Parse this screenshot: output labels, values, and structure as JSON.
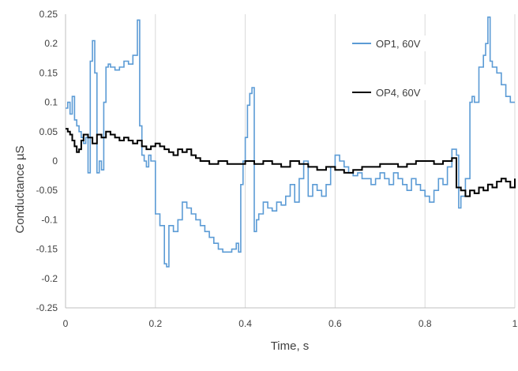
{
  "chart_data": {
    "type": "line",
    "title": "",
    "xlabel": "Time, s",
    "ylabel": "Conductance µS",
    "xlim": [
      0,
      1
    ],
    "ylim": [
      -0.25,
      0.25
    ],
    "x_ticks": [
      "0",
      "0.2",
      "0.4",
      "0.6",
      "0.8",
      "1"
    ],
    "y_ticks": [
      "0.25",
      "0.2",
      "0.15",
      "0.1",
      "0.05",
      "0",
      "-0.05",
      "-0.1",
      "-0.15",
      "-0.2",
      "-0.25"
    ],
    "grid": "vertical",
    "legend_position": "top-right",
    "colors": {
      "op1": "#5b9bd5",
      "op4": "#000000",
      "grid": "#d9d9d9"
    },
    "series": [
      {
        "name": "OP1, 60V",
        "color": "#5b9bd5",
        "step": true,
        "x": [
          0,
          0.005,
          0.01,
          0.015,
          0.02,
          0.025,
          0.03,
          0.035,
          0.04,
          0.045,
          0.05,
          0.055,
          0.06,
          0.065,
          0.07,
          0.075,
          0.08,
          0.085,
          0.09,
          0.095,
          0.1,
          0.11,
          0.12,
          0.13,
          0.14,
          0.15,
          0.16,
          0.165,
          0.17,
          0.175,
          0.18,
          0.185,
          0.19,
          0.2,
          0.21,
          0.22,
          0.225,
          0.23,
          0.24,
          0.25,
          0.26,
          0.27,
          0.28,
          0.29,
          0.3,
          0.31,
          0.32,
          0.33,
          0.34,
          0.35,
          0.36,
          0.37,
          0.38,
          0.385,
          0.39,
          0.395,
          0.4,
          0.405,
          0.41,
          0.415,
          0.42,
          0.425,
          0.43,
          0.44,
          0.45,
          0.46,
          0.47,
          0.48,
          0.49,
          0.5,
          0.51,
          0.52,
          0.53,
          0.54,
          0.55,
          0.56,
          0.57,
          0.58,
          0.59,
          0.6,
          0.61,
          0.62,
          0.63,
          0.64,
          0.65,
          0.66,
          0.67,
          0.68,
          0.69,
          0.7,
          0.71,
          0.72,
          0.73,
          0.74,
          0.75,
          0.76,
          0.77,
          0.78,
          0.79,
          0.8,
          0.81,
          0.82,
          0.83,
          0.84,
          0.85,
          0.86,
          0.87,
          0.875,
          0.88,
          0.89,
          0.9,
          0.905,
          0.91,
          0.92,
          0.93,
          0.935,
          0.94,
          0.945,
          0.95,
          0.96,
          0.97,
          0.98,
          0.99,
          1.0
        ],
        "y": [
          0.09,
          0.1,
          0.08,
          0.11,
          0.07,
          0.06,
          0.05,
          0.04,
          0.03,
          0.04,
          -0.02,
          0.17,
          0.205,
          0.15,
          -0.02,
          0.0,
          -0.015,
          0.1,
          0.16,
          0.165,
          0.16,
          0.155,
          0.16,
          0.17,
          0.165,
          0.18,
          0.24,
          0.06,
          0.01,
          0.0,
          -0.01,
          0.01,
          0.0,
          -0.09,
          -0.11,
          -0.175,
          -0.18,
          -0.11,
          -0.12,
          -0.1,
          -0.07,
          -0.08,
          -0.09,
          -0.1,
          -0.11,
          -0.12,
          -0.13,
          -0.14,
          -0.15,
          -0.155,
          -0.155,
          -0.15,
          -0.14,
          -0.155,
          -0.04,
          0.0,
          0.04,
          0.095,
          0.115,
          0.125,
          -0.12,
          -0.1,
          -0.09,
          -0.07,
          -0.08,
          -0.085,
          -0.07,
          -0.075,
          -0.06,
          -0.04,
          -0.07,
          -0.03,
          0.0,
          -0.06,
          -0.04,
          -0.05,
          -0.06,
          -0.04,
          -0.01,
          0.01,
          0.0,
          -0.01,
          -0.02,
          -0.025,
          -0.02,
          -0.03,
          -0.03,
          -0.04,
          -0.03,
          -0.02,
          -0.03,
          -0.04,
          -0.02,
          -0.03,
          -0.04,
          -0.05,
          -0.03,
          -0.04,
          -0.05,
          -0.06,
          -0.07,
          -0.05,
          -0.03,
          -0.04,
          -0.01,
          0.02,
          0.01,
          -0.08,
          -0.06,
          -0.03,
          0.1,
          0.11,
          0.1,
          0.16,
          0.18,
          0.2,
          0.245,
          0.17,
          0.16,
          0.15,
          0.13,
          0.11,
          0.1,
          0.1
        ]
      },
      {
        "name": "OP4, 60V",
        "color": "#000000",
        "step": true,
        "x": [
          0,
          0.005,
          0.01,
          0.015,
          0.02,
          0.025,
          0.03,
          0.035,
          0.04,
          0.05,
          0.06,
          0.07,
          0.08,
          0.09,
          0.1,
          0.11,
          0.12,
          0.13,
          0.14,
          0.15,
          0.16,
          0.17,
          0.18,
          0.19,
          0.2,
          0.21,
          0.22,
          0.23,
          0.24,
          0.25,
          0.26,
          0.27,
          0.28,
          0.29,
          0.3,
          0.32,
          0.34,
          0.36,
          0.38,
          0.4,
          0.42,
          0.44,
          0.46,
          0.48,
          0.5,
          0.52,
          0.54,
          0.56,
          0.58,
          0.6,
          0.62,
          0.64,
          0.66,
          0.68,
          0.7,
          0.72,
          0.74,
          0.76,
          0.78,
          0.8,
          0.82,
          0.84,
          0.86,
          0.87,
          0.88,
          0.89,
          0.9,
          0.91,
          0.92,
          0.93,
          0.94,
          0.95,
          0.96,
          0.97,
          0.98,
          0.99,
          1.0
        ],
        "y": [
          0.055,
          0.05,
          0.045,
          0.035,
          0.025,
          0.015,
          0.02,
          0.035,
          0.045,
          0.04,
          0.03,
          0.045,
          0.04,
          0.05,
          0.045,
          0.04,
          0.035,
          0.04,
          0.035,
          0.03,
          0.035,
          0.025,
          0.02,
          0.025,
          0.03,
          0.025,
          0.02,
          0.015,
          0.01,
          0.02,
          0.015,
          0.02,
          0.01,
          0.005,
          0.0,
          -0.005,
          0.0,
          -0.005,
          -0.005,
          0.0,
          -0.005,
          0.0,
          -0.005,
          -0.01,
          0.0,
          -0.005,
          -0.01,
          -0.015,
          -0.01,
          -0.015,
          -0.02,
          -0.015,
          -0.01,
          -0.01,
          -0.005,
          -0.005,
          -0.01,
          -0.005,
          0.0,
          0.0,
          -0.005,
          0.0,
          0.005,
          -0.045,
          -0.05,
          -0.06,
          -0.05,
          -0.055,
          -0.045,
          -0.05,
          -0.04,
          -0.045,
          -0.035,
          -0.03,
          -0.035,
          -0.045,
          -0.03
        ]
      }
    ]
  }
}
